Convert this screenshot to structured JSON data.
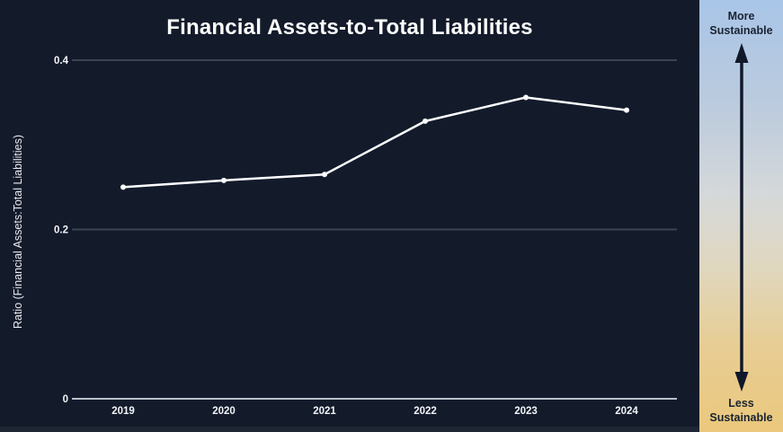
{
  "title": "Financial Assets-to-Total Liabilities",
  "colors": {
    "background": "#131b2b",
    "line": "#ffffff",
    "marker": "#ffffff",
    "grid": "#3c4452",
    "axis": "#b9bfc9",
    "tick_text": "#f2f4f7",
    "panel_text": "#1a2331",
    "panel_top": "#a9c5e8",
    "panel_bottom": "#ebc87c",
    "arrow": "#10182a",
    "bottom_strip": "#1e2634"
  },
  "chart_data": {
    "type": "line",
    "title": "Financial Assets-to-Total Liabilities",
    "x": [
      "2019",
      "2020",
      "2021",
      "2022",
      "2023",
      "2024"
    ],
    "series": [
      {
        "name": "Ratio (Financial Assets:Total Liabilities)",
        "values": [
          0.25,
          0.258,
          0.265,
          0.328,
          0.356,
          0.341
        ]
      }
    ],
    "xlabel": "",
    "ylabel": "Ratio (Financial Assets:Total Liabilities)",
    "ylim": [
      0,
      0.4
    ],
    "yticks": [
      0,
      0.2,
      0.4
    ],
    "ytick_labels": [
      "0",
      "0.2",
      "0.4"
    ],
    "grid": "horizontal-only",
    "legend": "none",
    "marker_shape": "circle"
  },
  "sustainability_scale": {
    "top_label": "More Sustainable",
    "bottom_label": "Less Sustainable"
  }
}
